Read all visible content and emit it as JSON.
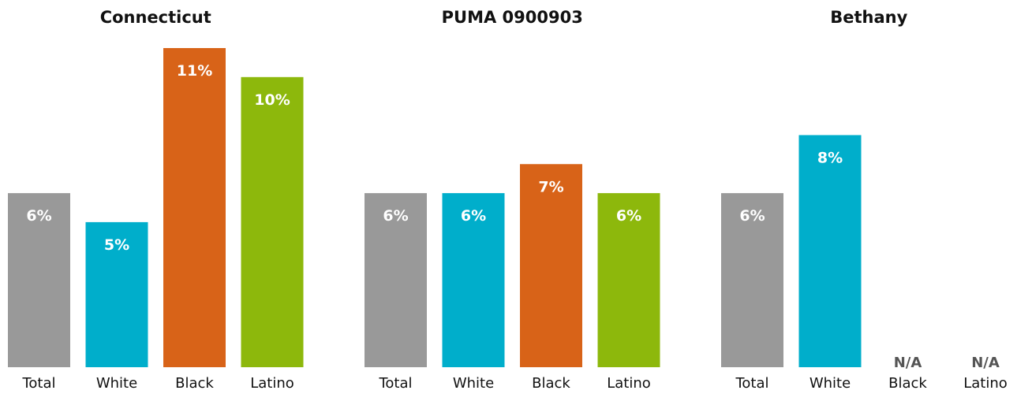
{
  "chart_data": [
    {
      "type": "bar",
      "title": "Connecticut",
      "categories": [
        "Total",
        "White",
        "Black",
        "Latino"
      ],
      "values": [
        6,
        5,
        11,
        10
      ],
      "labels": [
        "6%",
        "5%",
        "11%",
        "10%"
      ],
      "colors": [
        "#999999",
        "#00AECB",
        "#D86318",
        "#8DB80C"
      ],
      "ylim": [
        0,
        11
      ],
      "grid": false
    },
    {
      "type": "bar",
      "title": "PUMA 0900903",
      "categories": [
        "Total",
        "White",
        "Black",
        "Latino"
      ],
      "values": [
        6,
        6,
        7,
        6
      ],
      "labels": [
        "6%",
        "6%",
        "7%",
        "6%"
      ],
      "colors": [
        "#999999",
        "#00AECB",
        "#D86318",
        "#8DB80C"
      ],
      "ylim": [
        0,
        11
      ],
      "grid": false
    },
    {
      "type": "bar",
      "title": "Bethany",
      "categories": [
        "Total",
        "White",
        "Black",
        "Latino"
      ],
      "values": [
        6,
        8,
        null,
        null
      ],
      "labels": [
        "6%",
        "8%",
        "N/A",
        "N/A"
      ],
      "colors": [
        "#999999",
        "#00AECB",
        "#D86318",
        "#8DB80C"
      ],
      "ylim": [
        0,
        11
      ],
      "grid": false
    }
  ]
}
